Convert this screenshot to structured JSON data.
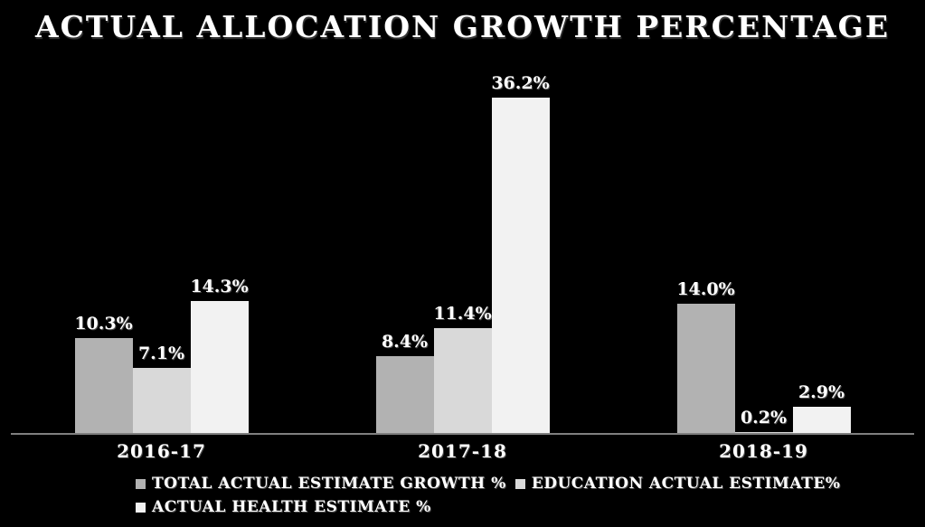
{
  "chart_data": {
    "type": "bar",
    "title": "ACTUAL ALLOCATION GROWTH PERCENTAGE",
    "categories": [
      "2016-17",
      "2017-18",
      "2018-19"
    ],
    "series": [
      {
        "name": "TOTAL ACTUAL ESTIMATE GROWTH %",
        "color": "#b2b2b2",
        "values": [
          10.3,
          8.4,
          14.0
        ]
      },
      {
        "name": "EDUCATION ACTUAL ESTIMATE%",
        "color": "#d9d9d9",
        "values": [
          7.1,
          11.4,
          0.2
        ]
      },
      {
        "name": "ACTUAL HEALTH ESTIMATE %",
        "color": "#f2f2f2",
        "values": [
          14.3,
          36.2,
          2.9
        ]
      }
    ],
    "data_labels": [
      [
        "10.3%",
        "8.4%",
        "14.0%"
      ],
      [
        "7.1%",
        "11.4%",
        "0.2%"
      ],
      [
        "14.3%",
        "36.2%",
        "2.9%"
      ]
    ],
    "xlabel": "",
    "ylabel": "",
    "ylim": [
      0,
      38
    ],
    "grid": false,
    "y_axis_visible": false,
    "legend_position": "bottom",
    "legend_rows": [
      [
        0,
        1
      ],
      [
        2
      ]
    ],
    "colors": {
      "background": "#000000",
      "text": "#ffffff",
      "axis_line": "#7f7f7f"
    }
  }
}
